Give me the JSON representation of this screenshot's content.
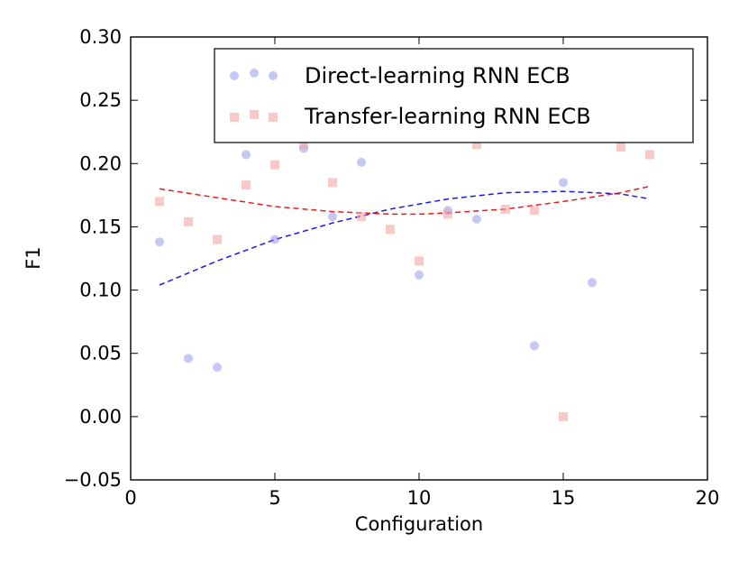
{
  "chart_data": {
    "type": "scatter",
    "xlabel": "Configuration",
    "ylabel": "F1",
    "xlim": [
      0,
      20
    ],
    "ylim": [
      -0.05,
      0.3
    ],
    "xticks": [
      0,
      5,
      10,
      15,
      20
    ],
    "yticks": [
      -0.05,
      0.0,
      0.05,
      0.1,
      0.15,
      0.2,
      0.25,
      0.3
    ],
    "xtick_labels": [
      "0",
      "5",
      "10",
      "15",
      "20"
    ],
    "ytick_labels": [
      "−0.05",
      "0.00",
      "0.05",
      "0.10",
      "0.15",
      "0.20",
      "0.25",
      "0.30"
    ],
    "grid": false,
    "legend_position": "top-right",
    "series": [
      {
        "name": "Direct-learning RNN ECB",
        "marker": "circle",
        "color": "#8080ee",
        "x": [
          1,
          2,
          3,
          4,
          5,
          6,
          7,
          8,
          10,
          11,
          12,
          14,
          15,
          16
        ],
        "y": [
          0.138,
          0.046,
          0.039,
          0.207,
          0.14,
          0.212,
          0.158,
          0.201,
          0.112,
          0.163,
          0.156,
          0.056,
          0.185,
          0.106
        ],
        "trend": {
          "color": "#1a1aee",
          "x": [
            1,
            3,
            5,
            7,
            9,
            11,
            13,
            15,
            17,
            18
          ],
          "y": [
            0.104,
            0.123,
            0.14,
            0.153,
            0.164,
            0.172,
            0.177,
            0.178,
            0.176,
            0.172
          ]
        }
      },
      {
        "name": "Transfer-learning RNN ECB",
        "marker": "square",
        "color": "#f5a3a3",
        "x": [
          1,
          2,
          3,
          4,
          5,
          6,
          7,
          8,
          9,
          10,
          11,
          12,
          13,
          14,
          15,
          17,
          18
        ],
        "y": [
          0.17,
          0.154,
          0.14,
          0.183,
          0.199,
          0.215,
          0.185,
          0.158,
          0.148,
          0.123,
          0.16,
          0.215,
          0.164,
          0.163,
          0.0,
          0.213,
          0.207
        ],
        "trend": {
          "color": "#ee1a1a",
          "x": [
            1,
            3,
            5,
            7,
            9,
            10,
            11,
            13,
            15,
            17,
            18
          ],
          "y": [
            0.18,
            0.173,
            0.166,
            0.162,
            0.16,
            0.16,
            0.161,
            0.164,
            0.17,
            0.177,
            0.182
          ]
        }
      }
    ]
  }
}
